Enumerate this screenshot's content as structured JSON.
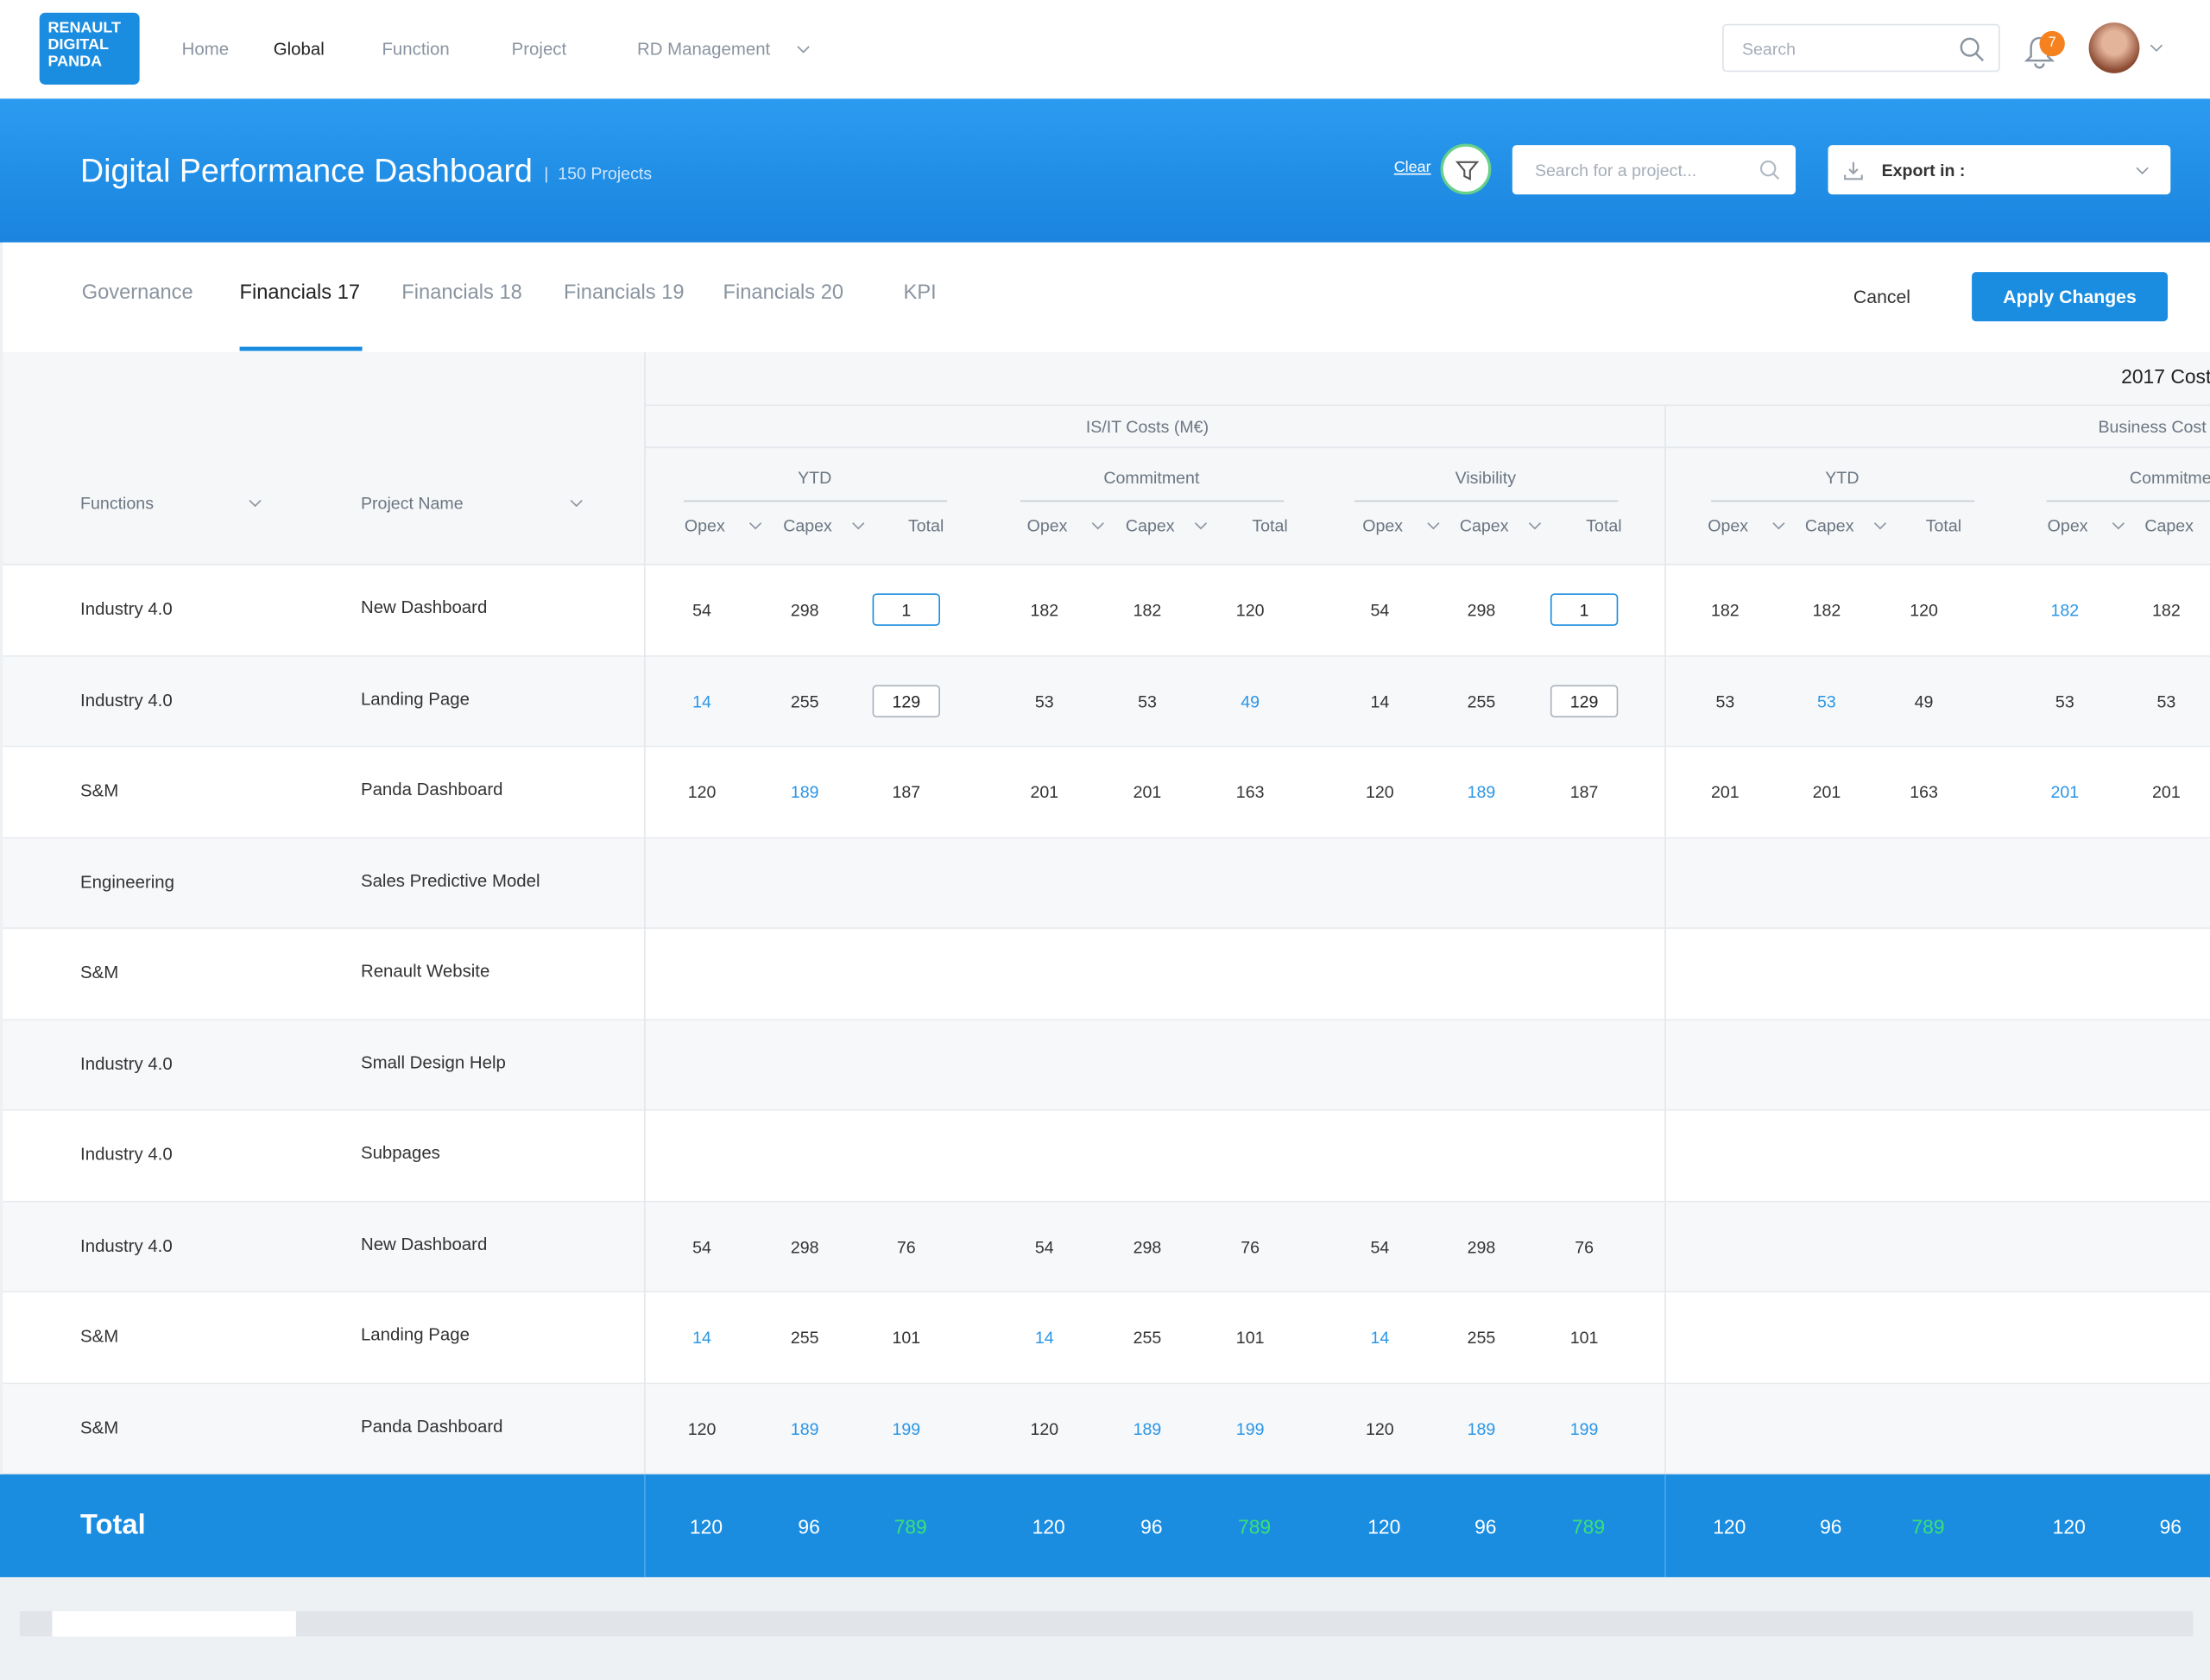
{
  "nav": {
    "logo": [
      "RENAULT",
      "DIGITAL",
      "PANDA"
    ],
    "links": [
      "Home",
      "Global",
      "Function",
      "Project",
      "RD Management"
    ],
    "active": 1,
    "search": "Search",
    "notifications": "7"
  },
  "header": {
    "title": "Digital Performance Dashboard",
    "count": "150 Projects",
    "clear": "Clear",
    "project_search": "Search for a project...",
    "export": "Export in :"
  },
  "tabs": {
    "items": [
      "Governance",
      "Financials 17",
      "Financials 18",
      "Financials 19",
      "Financials 20",
      "KPI"
    ],
    "active": 1,
    "cancel": "Cancel",
    "apply": "Apply Changes"
  },
  "table": {
    "year_header": "2017 Cost",
    "groups": [
      "IS/IT Costs (M€)",
      "Business Cost"
    ],
    "subgroups": [
      "YTD",
      "Commitment",
      "Visibility",
      "YTD",
      "Commitment"
    ],
    "row_headers": [
      "Functions",
      "Project Name"
    ],
    "columns": [
      "Opex",
      "Capex",
      "Total",
      "Opex",
      "Capex",
      "Total",
      "Opex",
      "Capex",
      "Total",
      "Opex",
      "Capex",
      "Total",
      "Opex",
      "Capex"
    ],
    "rows": [
      {
        "function": "Industry 4.0",
        "project": "New Dashboard",
        "cells": [
          54,
          298,
          1,
          182,
          182,
          120,
          54,
          298,
          1,
          182,
          182,
          120,
          182,
          182
        ],
        "highlight": [
          12
        ],
        "inputs": [
          2,
          8
        ]
      },
      {
        "function": "Industry 4.0",
        "project": "Landing Page",
        "cells": [
          14,
          255,
          129,
          53,
          53,
          49,
          14,
          255,
          129,
          53,
          53,
          49,
          53,
          53
        ],
        "highlight": [
          0,
          5,
          10
        ],
        "inputs": [
          2,
          8
        ]
      },
      {
        "function": "S&M",
        "project": "Panda Dashboard",
        "cells": [
          120,
          189,
          187,
          201,
          201,
          163,
          120,
          189,
          187,
          201,
          201,
          163,
          201,
          201
        ],
        "highlight": [
          1,
          7,
          12
        ],
        "inputs": []
      },
      {
        "function": "Engineering",
        "project": "Sales Predictive Model",
        "cells": [],
        "highlight": [],
        "inputs": []
      },
      {
        "function": "S&M",
        "project": "Renault Website",
        "cells": [],
        "highlight": [],
        "inputs": []
      },
      {
        "function": "Industry 4.0",
        "project": "Small Design Help",
        "cells": [],
        "highlight": [],
        "inputs": []
      },
      {
        "function": "Industry 4.0",
        "project": "Subpages",
        "cells": [],
        "highlight": [],
        "inputs": []
      },
      {
        "function": "Industry 4.0",
        "project": "New Dashboard",
        "cells": [
          54,
          298,
          76,
          54,
          298,
          76,
          54,
          298,
          76
        ],
        "highlight": [],
        "inputs": []
      },
      {
        "function": "S&M",
        "project": "Landing Page",
        "cells": [
          14,
          255,
          101,
          14,
          255,
          101,
          14,
          255,
          101
        ],
        "highlight": [
          0,
          3,
          6
        ],
        "inputs": []
      },
      {
        "function": "S&M",
        "project": "Panda Dashboard",
        "cells": [
          120,
          189,
          199,
          120,
          189,
          199,
          120,
          189,
          199
        ],
        "highlight": [
          1,
          2,
          4,
          5,
          7,
          8
        ],
        "inputs": []
      }
    ],
    "total": {
      "label": "Total",
      "cells": [
        120,
        96,
        789,
        120,
        96,
        789,
        120,
        96,
        789,
        120,
        96,
        789,
        120,
        96
      ],
      "highlight": [
        2,
        5,
        8,
        11
      ]
    }
  }
}
